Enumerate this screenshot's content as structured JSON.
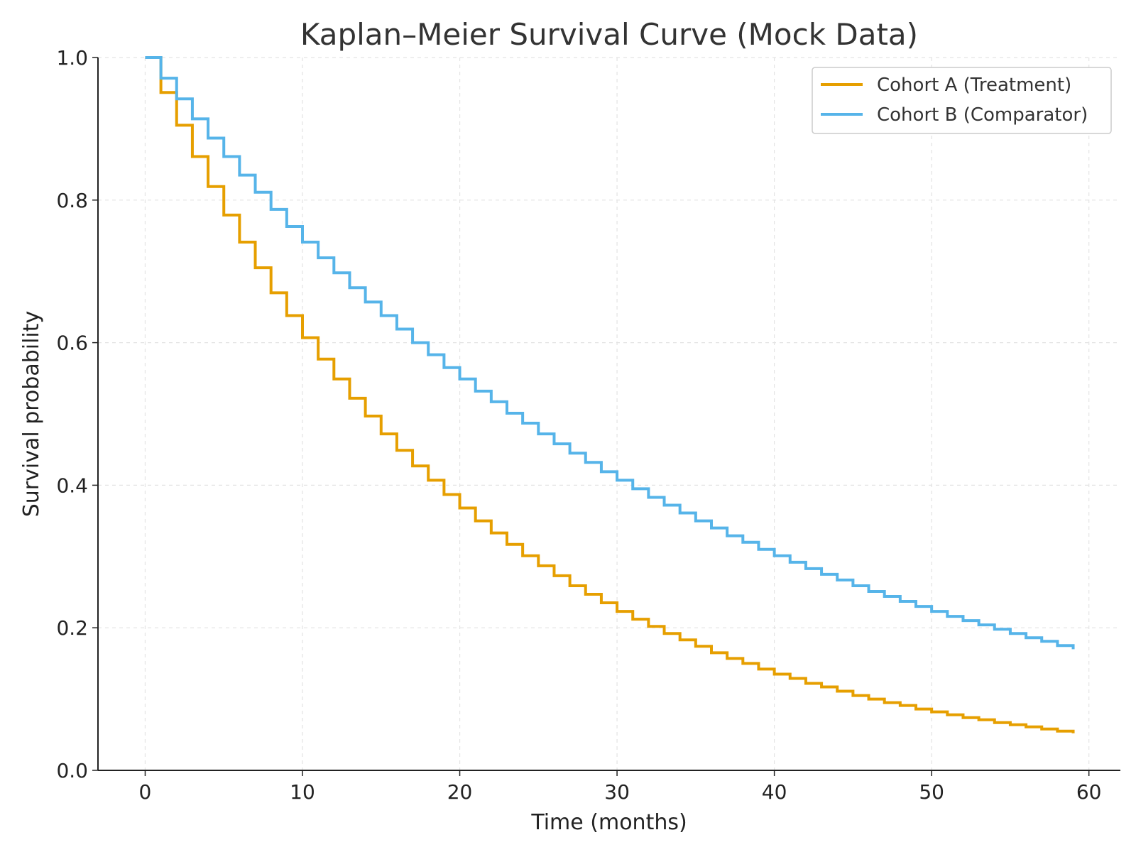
{
  "chart_data": {
    "type": "line",
    "step": true,
    "title": "Kaplan–Meier Survival Curve (Mock Data)",
    "xlabel": "Time (months)",
    "ylabel": "Survival probability",
    "xlim": [
      -3,
      62
    ],
    "ylim": [
      0,
      1
    ],
    "xticks": [
      0,
      10,
      20,
      30,
      40,
      50,
      60
    ],
    "yticks": [
      0.0,
      0.2,
      0.4,
      0.6,
      0.8,
      1.0
    ],
    "xtick_labels": [
      "0",
      "10",
      "20",
      "30",
      "40",
      "50",
      "60"
    ],
    "ytick_labels": [
      "0.0",
      "0.2",
      "0.4",
      "0.6",
      "0.8",
      "1.0"
    ],
    "grid": true,
    "legend_position": "top-right",
    "series": [
      {
        "name": "Cohort A (Treatment)",
        "color": "#E69F00",
        "x": [
          0,
          1,
          2,
          3,
          4,
          5,
          6,
          7,
          8,
          9,
          10,
          11,
          12,
          13,
          14,
          15,
          16,
          17,
          18,
          19,
          20,
          21,
          22,
          23,
          24,
          25,
          26,
          27,
          28,
          29,
          30,
          31,
          32,
          33,
          34,
          35,
          36,
          37,
          38,
          39,
          40,
          41,
          42,
          43,
          44,
          45,
          46,
          47,
          48,
          49,
          50,
          51,
          52,
          53,
          54,
          55,
          56,
          57,
          58,
          59
        ],
        "y": [
          1.0,
          0.951,
          0.905,
          0.861,
          0.819,
          0.779,
          0.741,
          0.705,
          0.67,
          0.638,
          0.607,
          0.577,
          0.549,
          0.522,
          0.497,
          0.472,
          0.449,
          0.427,
          0.407,
          0.387,
          0.368,
          0.35,
          0.333,
          0.317,
          0.301,
          0.287,
          0.273,
          0.259,
          0.247,
          0.235,
          0.223,
          0.212,
          0.202,
          0.192,
          0.183,
          0.174,
          0.165,
          0.157,
          0.15,
          0.142,
          0.135,
          0.129,
          0.122,
          0.117,
          0.111,
          0.105,
          0.1,
          0.095,
          0.091,
          0.086,
          0.082,
          0.078,
          0.074,
          0.071,
          0.067,
          0.064,
          0.061,
          0.058,
          0.055,
          0.052
        ]
      },
      {
        "name": "Cohort B (Comparator)",
        "color": "#56B4E9",
        "x": [
          0,
          1,
          2,
          3,
          4,
          5,
          6,
          7,
          8,
          9,
          10,
          11,
          12,
          13,
          14,
          15,
          16,
          17,
          18,
          19,
          20,
          21,
          22,
          23,
          24,
          25,
          26,
          27,
          28,
          29,
          30,
          31,
          32,
          33,
          34,
          35,
          36,
          37,
          38,
          39,
          40,
          41,
          42,
          43,
          44,
          45,
          46,
          47,
          48,
          49,
          50,
          51,
          52,
          53,
          54,
          55,
          56,
          57,
          58,
          59
        ],
        "y": [
          1.0,
          0.971,
          0.942,
          0.914,
          0.887,
          0.861,
          0.835,
          0.811,
          0.787,
          0.763,
          0.741,
          0.719,
          0.698,
          0.677,
          0.657,
          0.638,
          0.619,
          0.6,
          0.583,
          0.565,
          0.549,
          0.532,
          0.517,
          0.501,
          0.487,
          0.472,
          0.458,
          0.445,
          0.432,
          0.419,
          0.407,
          0.395,
          0.383,
          0.372,
          0.361,
          0.35,
          0.34,
          0.329,
          0.32,
          0.31,
          0.301,
          0.292,
          0.283,
          0.275,
          0.267,
          0.259,
          0.251,
          0.244,
          0.237,
          0.23,
          0.223,
          0.216,
          0.21,
          0.204,
          0.198,
          0.192,
          0.186,
          0.181,
          0.175,
          0.17
        ]
      }
    ]
  }
}
